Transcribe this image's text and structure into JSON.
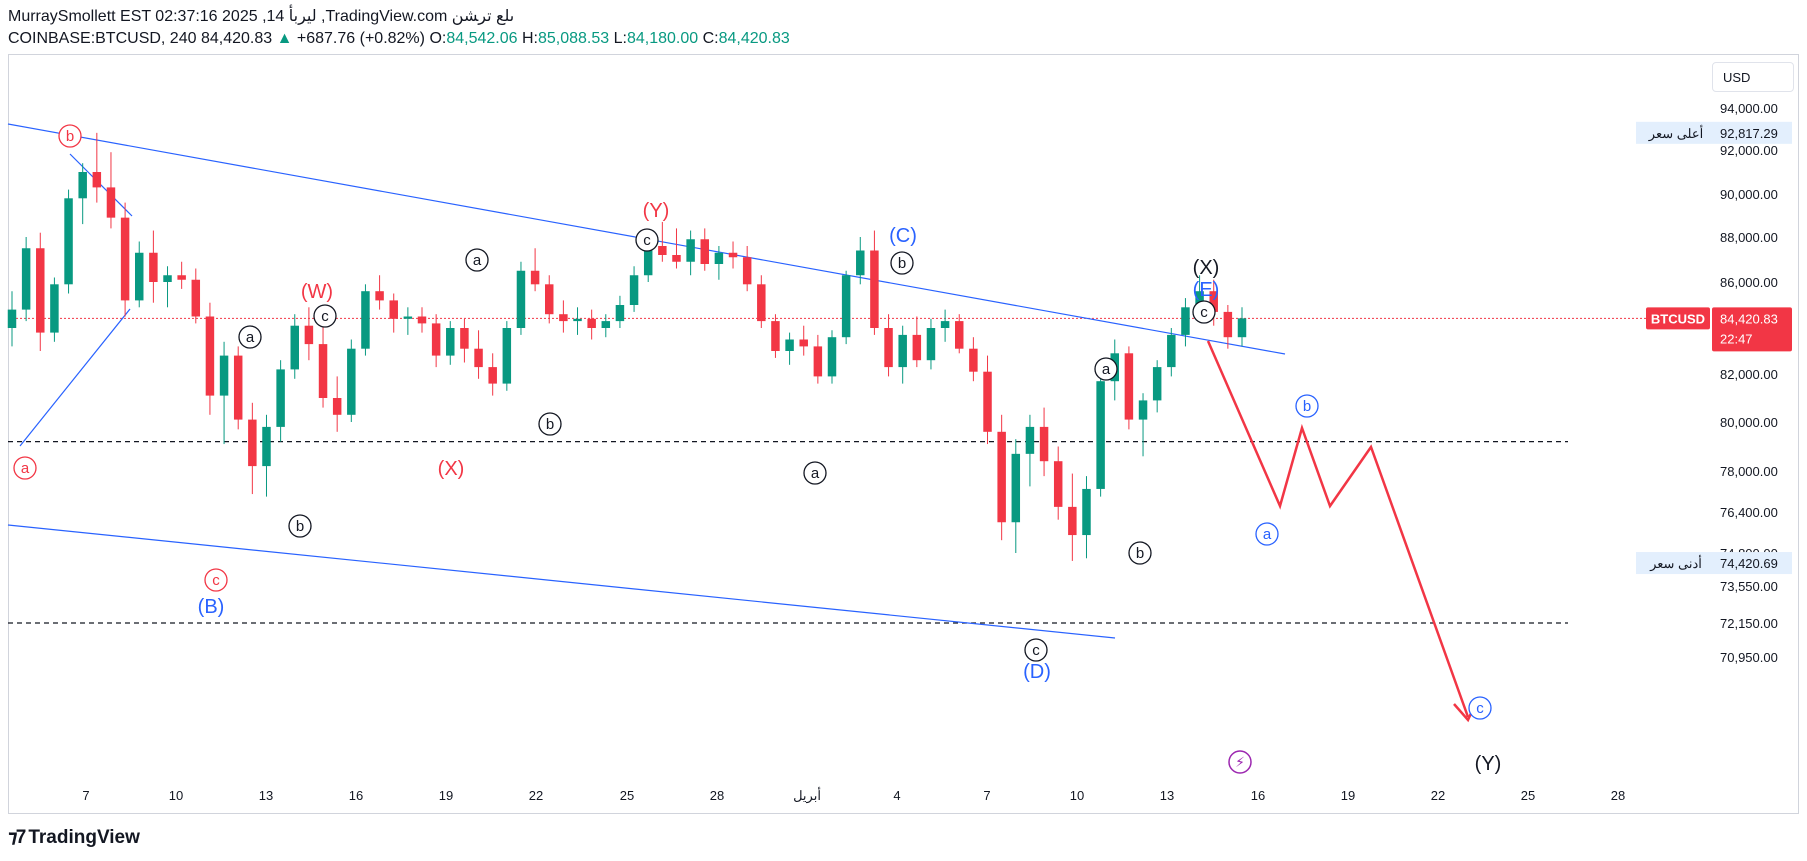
{
  "header": {
    "publisher_line": "MurraySmollett EST 02:37:16 2025 ,14 ليربأ ,TradingView.com ىلع تر‍شن",
    "symbol": "COINBASE:BTCUSD, 240",
    "last": "84,420.83",
    "change": "+687.76 (+0.82%)",
    "o_label": "O:",
    "o_val": "84,542.06",
    "h_label": "H:",
    "h_val": "85,088.53",
    "l_label": "L:",
    "l_val": "84,180.00",
    "c_label": "C:",
    "c_val": "84,420.83"
  },
  "currency_button": "USD",
  "footer": {
    "brand": "TradingView"
  },
  "colors": {
    "up": "#089981",
    "down": "#f23645",
    "trend": "#2962ff",
    "grid": "#e0e3eb"
  },
  "chart_data": {
    "type": "candlestick",
    "y_axis_labels": [
      "94,000.00",
      "92,000.00",
      "90,000.00",
      "88,000.00",
      "86,000.00",
      "82,000.00",
      "80,000.00",
      "78,000.00",
      "76,400.00",
      "74,800.00",
      "73,550.00",
      "72,150.00",
      "70,950.00"
    ],
    "y_axis_values": [
      94000,
      92000,
      90000,
      88000,
      86000,
      82000,
      80000,
      78000,
      76400,
      74800,
      73550,
      72150,
      70950
    ],
    "x_axis_labels": [
      "7",
      "10",
      "13",
      "16",
      "19",
      "22",
      "25",
      "28",
      "أبريل",
      "4",
      "7",
      "10",
      "13",
      "16",
      "19",
      "22",
      "25",
      "28"
    ],
    "high_label": {
      "text": "أعلى سعر",
      "value": "92,817.29"
    },
    "low_label": {
      "text": "أدنى سعر",
      "value": "74,420.69"
    },
    "price_tag": {
      "symbol": "BTCUSD",
      "value": "84,420.83",
      "countdown": "22:47"
    },
    "candles": [
      [
        84000,
        85600,
        83200,
        84800
      ],
      [
        84800,
        88000,
        84300,
        87500
      ],
      [
        87500,
        88200,
        83000,
        83800
      ],
      [
        83800,
        86200,
        83400,
        85900
      ],
      [
        85900,
        90200,
        85500,
        89800
      ],
      [
        89800,
        91400,
        88600,
        91000
      ],
      [
        91000,
        92817,
        89600,
        90300
      ],
      [
        90300,
        91900,
        88400,
        88900
      ],
      [
        88900,
        89600,
        84500,
        85200
      ],
      [
        85200,
        87800,
        84900,
        87300
      ],
      [
        87300,
        88300,
        85100,
        86000
      ],
      [
        86000,
        86700,
        84900,
        86300
      ],
      [
        86300,
        86900,
        85700,
        86100
      ],
      [
        86100,
        86600,
        84200,
        84500
      ],
      [
        84500,
        85100,
        80300,
        81100
      ],
      [
        81100,
        83400,
        79100,
        82800
      ],
      [
        82800,
        83200,
        79700,
        80100
      ],
      [
        80100,
        80800,
        77100,
        78200
      ],
      [
        78200,
        80300,
        77000,
        79800
      ],
      [
        79800,
        82600,
        79200,
        82200
      ],
      [
        82200,
        84600,
        81800,
        84100
      ],
      [
        84100,
        84900,
        82600,
        83300
      ],
      [
        83300,
        84700,
        80600,
        81000
      ],
      [
        81000,
        81900,
        79600,
        80300
      ],
      [
        80300,
        83500,
        80000,
        83100
      ],
      [
        83100,
        85900,
        82800,
        85600
      ],
      [
        85600,
        86300,
        84800,
        85200
      ],
      [
        85200,
        85500,
        83800,
        84400
      ],
      [
        84400,
        84900,
        83700,
        84500
      ],
      [
        84500,
        84900,
        83800,
        84200
      ],
      [
        84200,
        84600,
        82300,
        82800
      ],
      [
        82800,
        84300,
        82400,
        84000
      ],
      [
        84000,
        84400,
        82500,
        83100
      ],
      [
        83100,
        83900,
        81800,
        82300
      ],
      [
        82300,
        82900,
        81100,
        81600
      ],
      [
        81600,
        84300,
        81300,
        84000
      ],
      [
        84000,
        86900,
        83700,
        86500
      ],
      [
        86500,
        87500,
        85600,
        85900
      ],
      [
        85900,
        86300,
        84200,
        84600
      ],
      [
        84600,
        85200,
        83800,
        84300
      ],
      [
        84300,
        84900,
        83700,
        84400
      ],
      [
        84400,
        84800,
        83500,
        84000
      ],
      [
        84000,
        84600,
        83600,
        84300
      ],
      [
        84300,
        85400,
        84000,
        85000
      ],
      [
        85000,
        86700,
        84700,
        86300
      ],
      [
        86300,
        88000,
        86000,
        87600
      ],
      [
        87600,
        88700,
        86900,
        87200
      ],
      [
        87200,
        88400,
        86600,
        86900
      ],
      [
        86900,
        88300,
        86300,
        87900
      ],
      [
        87900,
        88400,
        86500,
        86800
      ],
      [
        86800,
        87600,
        86100,
        87300
      ],
      [
        87300,
        87800,
        86600,
        87100
      ],
      [
        87100,
        87600,
        85600,
        85900
      ],
      [
        85900,
        86300,
        84000,
        84300
      ],
      [
        84300,
        84600,
        82700,
        83000
      ],
      [
        83000,
        83800,
        82400,
        83500
      ],
      [
        83500,
        84100,
        82800,
        83200
      ],
      [
        83200,
        83700,
        81600,
        81900
      ],
      [
        81900,
        83900,
        81600,
        83600
      ],
      [
        83600,
        86500,
        83300,
        86300
      ],
      [
        86300,
        88000,
        85900,
        87400
      ],
      [
        87400,
        88300,
        83700,
        84000
      ],
      [
        84000,
        84600,
        81900,
        82300
      ],
      [
        82300,
        84100,
        81600,
        83700
      ],
      [
        83700,
        84500,
        82300,
        82600
      ],
      [
        82600,
        84400,
        82200,
        84000
      ],
      [
        84000,
        84800,
        83400,
        84300
      ],
      [
        84300,
        84600,
        82900,
        83100
      ],
      [
        83100,
        83600,
        81700,
        82100
      ],
      [
        82100,
        82800,
        79100,
        79600
      ],
      [
        79600,
        80300,
        75300,
        76000
      ],
      [
        76000,
        79300,
        74800,
        78700
      ],
      [
        78700,
        80300,
        77400,
        79800
      ],
      [
        79800,
        80600,
        77800,
        78400
      ],
      [
        78400,
        79000,
        76100,
        76600
      ],
      [
        76600,
        77900,
        74500,
        75500
      ],
      [
        75500,
        77800,
        74600,
        77300
      ],
      [
        77300,
        82100,
        77000,
        81700
      ],
      [
        81700,
        83500,
        80900,
        82900
      ],
      [
        82900,
        83200,
        79700,
        80100
      ],
      [
        80100,
        81200,
        78600,
        80900
      ],
      [
        80900,
        82600,
        80400,
        82300
      ],
      [
        82300,
        84000,
        81900,
        83700
      ],
      [
        83700,
        85300,
        83200,
        84900
      ],
      [
        84900,
        86300,
        84400,
        85600
      ],
      [
        85600,
        86100,
        84100,
        84700
      ],
      [
        84700,
        85000,
        83100,
        83600
      ],
      [
        83600,
        84900,
        83200,
        84420
      ]
    ],
    "wave_labels": [
      {
        "text": "b",
        "style": "circle-red"
      },
      {
        "text": "a",
        "style": "circle-red"
      },
      {
        "text": "c",
        "style": "circle-red"
      },
      {
        "text": "(B)",
        "style": "blue"
      },
      {
        "text": "(W)",
        "style": "red"
      },
      {
        "text": "c",
        "style": "circle"
      },
      {
        "text": "a",
        "style": "circle"
      },
      {
        "text": "b",
        "style": "circle"
      },
      {
        "text": "a",
        "style": "circle"
      },
      {
        "text": "(X)",
        "style": "red"
      },
      {
        "text": "b",
        "style": "circle"
      },
      {
        "text": "(Y)",
        "style": "red"
      },
      {
        "text": "c",
        "style": "circle"
      },
      {
        "text": "(C)",
        "style": "blue"
      },
      {
        "text": "b",
        "style": "circle"
      },
      {
        "text": "a",
        "style": "circle"
      },
      {
        "text": "c",
        "style": "circle"
      },
      {
        "text": "(D)",
        "style": "blue"
      },
      {
        "text": "a",
        "style": "circle"
      },
      {
        "text": "b",
        "style": "circle"
      },
      {
        "text": "(X)",
        "style": "black"
      },
      {
        "text": "(E)",
        "style": "blue"
      },
      {
        "text": "c",
        "style": "circle"
      },
      {
        "text": "b",
        "style": "circle-blue"
      },
      {
        "text": "a",
        "style": "circle-blue"
      },
      {
        "text": "c",
        "style": "circle-blue"
      },
      {
        "text": "(Y)",
        "style": "black"
      }
    ],
    "dashed_levels": [
      79200,
      72150
    ],
    "projection": [
      [
        84420,
        85600
      ],
      [
        79400,
        83200
      ],
      [
        85000,
        82200
      ],
      [
        79400,
        81600
      ],
      [
        72300,
        72300
      ]
    ]
  }
}
